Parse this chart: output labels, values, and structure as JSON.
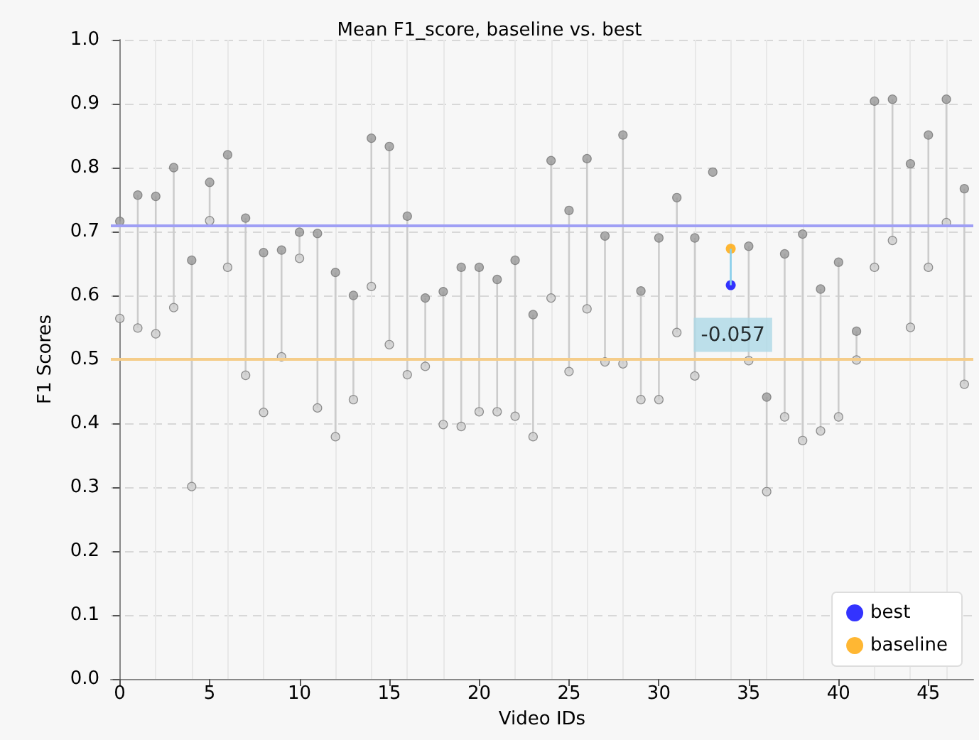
{
  "chart_data": {
    "type": "scatter",
    "title": "Mean F1_score, baseline vs. best",
    "xlabel": "Video IDs",
    "ylabel": "F1 Scores",
    "x": [
      0,
      1,
      2,
      3,
      4,
      5,
      6,
      7,
      8,
      9,
      10,
      11,
      12,
      13,
      14,
      15,
      16,
      17,
      18,
      19,
      20,
      21,
      22,
      23,
      24,
      25,
      26,
      27,
      28,
      29,
      30,
      31,
      32,
      33,
      34,
      35,
      36,
      37,
      38,
      39,
      40,
      41,
      42,
      43,
      44,
      45,
      46,
      47
    ],
    "series": [
      {
        "color": "#999999",
        "values": [
          0.716,
          0.757,
          0.755,
          0.8,
          0.655,
          0.777,
          0.82,
          0.721,
          0.667,
          0.671,
          0.699,
          0.697,
          0.636,
          0.6,
          0.846,
          0.833,
          0.724,
          0.596,
          0.606,
          0.644,
          0.644,
          0.625,
          0.655,
          0.57,
          0.811,
          0.733,
          0.814,
          0.693,
          0.851,
          0.607,
          0.69,
          0.753,
          0.69,
          0.793,
          null,
          0.677,
          0.441,
          0.665,
          0.696,
          0.61,
          0.652,
          0.544,
          0.904,
          0.907,
          0.806,
          0.851,
          0.907,
          0.767
        ],
        "errors": [
          [
            0.564,
            0.716
          ],
          [
            0.549,
            0.757
          ],
          [
            0.54,
            0.755
          ],
          [
            0.581,
            0.8
          ],
          [
            0.301,
            0.655
          ],
          [
            0.717,
            0.777
          ],
          [
            0.644,
            0.82
          ],
          [
            0.475,
            0.721
          ],
          [
            0.417,
            0.667
          ],
          [
            0.504,
            0.671
          ],
          [
            0.658,
            0.699
          ],
          [
            0.424,
            0.697
          ],
          [
            0.379,
            0.636
          ],
          [
            0.437,
            0.6
          ],
          [
            0.614,
            0.846
          ],
          [
            0.523,
            0.833
          ],
          [
            0.476,
            0.724
          ],
          [
            0.489,
            0.596
          ],
          [
            0.398,
            0.606
          ],
          [
            0.395,
            0.644
          ],
          [
            0.418,
            0.644
          ],
          [
            0.418,
            0.625
          ],
          [
            0.411,
            0.655
          ],
          [
            0.379,
            0.57
          ],
          [
            0.596,
            0.811
          ],
          [
            0.481,
            0.733
          ],
          [
            0.579,
            0.814
          ],
          [
            0.496,
            0.693
          ],
          [
            0.493,
            0.851
          ],
          [
            0.437,
            0.607
          ],
          [
            0.437,
            0.69
          ],
          [
            0.542,
            0.753
          ],
          [
            0.474,
            0.69
          ],
          null,
          null,
          [
            0.498,
            0.677
          ],
          [
            0.293,
            0.441
          ],
          [
            0.41,
            0.665
          ],
          [
            0.373,
            0.696
          ],
          [
            0.388,
            0.61
          ],
          [
            0.41,
            0.652
          ],
          [
            0.499,
            0.544
          ],
          [
            0.644,
            0.904
          ],
          [
            0.686,
            0.907
          ],
          [
            0.55,
            0.806
          ],
          [
            0.644,
            0.851
          ],
          [
            0.714,
            0.907
          ],
          [
            0.461,
            0.767
          ]
        ]
      },
      {
        "color": "#cccccc",
        "values": [
          0.564,
          0.549,
          0.54,
          0.581,
          0.301,
          0.717,
          0.644,
          0.475,
          0.417,
          0.504,
          0.658,
          0.424,
          0.379,
          0.437,
          0.614,
          0.523,
          0.476,
          0.489,
          0.398,
          0.395,
          0.418,
          0.418,
          0.411,
          0.379,
          0.596,
          0.481,
          0.579,
          0.496,
          0.493,
          0.437,
          0.437,
          0.542,
          0.474,
          null,
          null,
          0.498,
          0.293,
          0.41,
          0.373,
          0.388,
          0.41,
          0.499,
          0.644,
          0.686,
          0.55,
          0.644,
          0.714,
          0.461
        ]
      },
      {
        "name": "best",
        "color": "#0000ff",
        "x": [
          34
        ],
        "values": [
          0.616
        ],
        "errors": [
          [
            0.616,
            0.673
          ]
        ]
      },
      {
        "name": "baseline",
        "color": "#ffa500",
        "x": [
          34
        ],
        "values": [
          0.673
        ]
      }
    ],
    "ref_lines": [
      {
        "axis": "y",
        "value": 0.713,
        "color": "#9f9ff5"
      },
      {
        "axis": "y",
        "value": 0.5,
        "color": "#f5cd8a"
      }
    ],
    "annotations": [
      {
        "text": "-0.057",
        "x": 34,
        "y": 0.616
      }
    ],
    "xlim": [
      -0.5,
      47.5
    ],
    "xticks": [
      0,
      5,
      10,
      15,
      20,
      25,
      30,
      35,
      40,
      45
    ],
    "ylim": [
      0,
      1
    ],
    "yticks": [
      {
        "value": 0,
        "label": "0.0"
      },
      {
        "value": 0.1,
        "label": "0.1"
      },
      {
        "value": 0.2,
        "label": "0.2"
      },
      {
        "value": 0.3,
        "label": "0.3"
      },
      {
        "value": 0.4,
        "label": "0.4"
      },
      {
        "value": 0.5,
        "label": "0.5"
      },
      {
        "value": 0.6,
        "label": "0.6"
      },
      {
        "value": 0.7,
        "label": "0.7"
      },
      {
        "value": 0.8,
        "label": "0.8"
      },
      {
        "value": 0.9,
        "label": "0.9"
      },
      {
        "value": 1,
        "label": "1.0"
      }
    ],
    "grid": true,
    "legend": "bottom right",
    "marker": "circle"
  }
}
